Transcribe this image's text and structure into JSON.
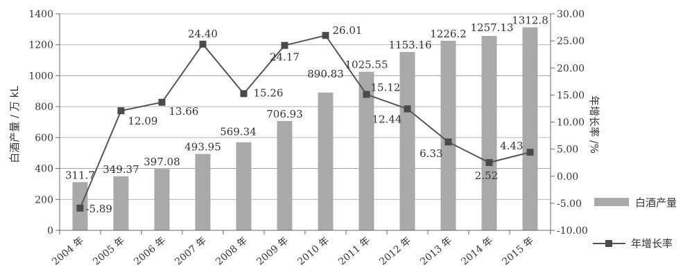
{
  "chart_data": {
    "type": "bar",
    "categories": [
      "2004 年",
      "2005 年",
      "2006 年",
      "2007 年",
      "2008 年",
      "2009 年",
      "2010 年",
      "2011 年",
      "2012 年",
      "2013 年",
      "2014 年",
      "2015 年"
    ],
    "series": [
      {
        "name": "白酒产量",
        "type": "bar",
        "axis": "left",
        "values": [
          311.7,
          349.37,
          397.08,
          493.95,
          569.34,
          706.93,
          890.83,
          1025.55,
          1153.16,
          1226.2,
          1257.13,
          1312.8
        ],
        "labels": [
          "311.7",
          "349.37",
          "397.08",
          "493.95",
          "569.34",
          "706.93",
          "890.83",
          "1025.55",
          "1153.16",
          "1226.2",
          "1257.13",
          "1312.8"
        ],
        "color": "#a9a9a9"
      },
      {
        "name": "年增长率",
        "type": "line",
        "axis": "right",
        "values": [
          -5.89,
          12.09,
          13.66,
          24.4,
          15.26,
          24.17,
          26.01,
          15.12,
          12.44,
          6.33,
          2.52,
          4.43
        ],
        "labels": [
          "-5.89",
          "12.09",
          "13.66",
          "24.40",
          "15.26",
          "24.17",
          "26.01",
          "15.12",
          "12.44",
          "6.33",
          "2.52",
          "4.43"
        ],
        "color": "#555555"
      }
    ],
    "ylabel": "白酒产量 / 万 kL",
    "y2label": "年增长率 /%",
    "ylim": [
      0,
      1400
    ],
    "y2lim": [
      -10,
      30
    ],
    "yticks": [
      "0",
      "200",
      "400",
      "600",
      "800",
      "1000",
      "1200",
      "1400"
    ],
    "y2ticks": [
      "-10.00",
      "-5.00",
      "0.00",
      "5.00",
      "10.00",
      "15.00",
      "20.00",
      "25.00",
      "30.00"
    ],
    "grid": "horizontal",
    "legend": {
      "position": "right",
      "items": [
        "白酒产量",
        "年增长率"
      ]
    }
  }
}
